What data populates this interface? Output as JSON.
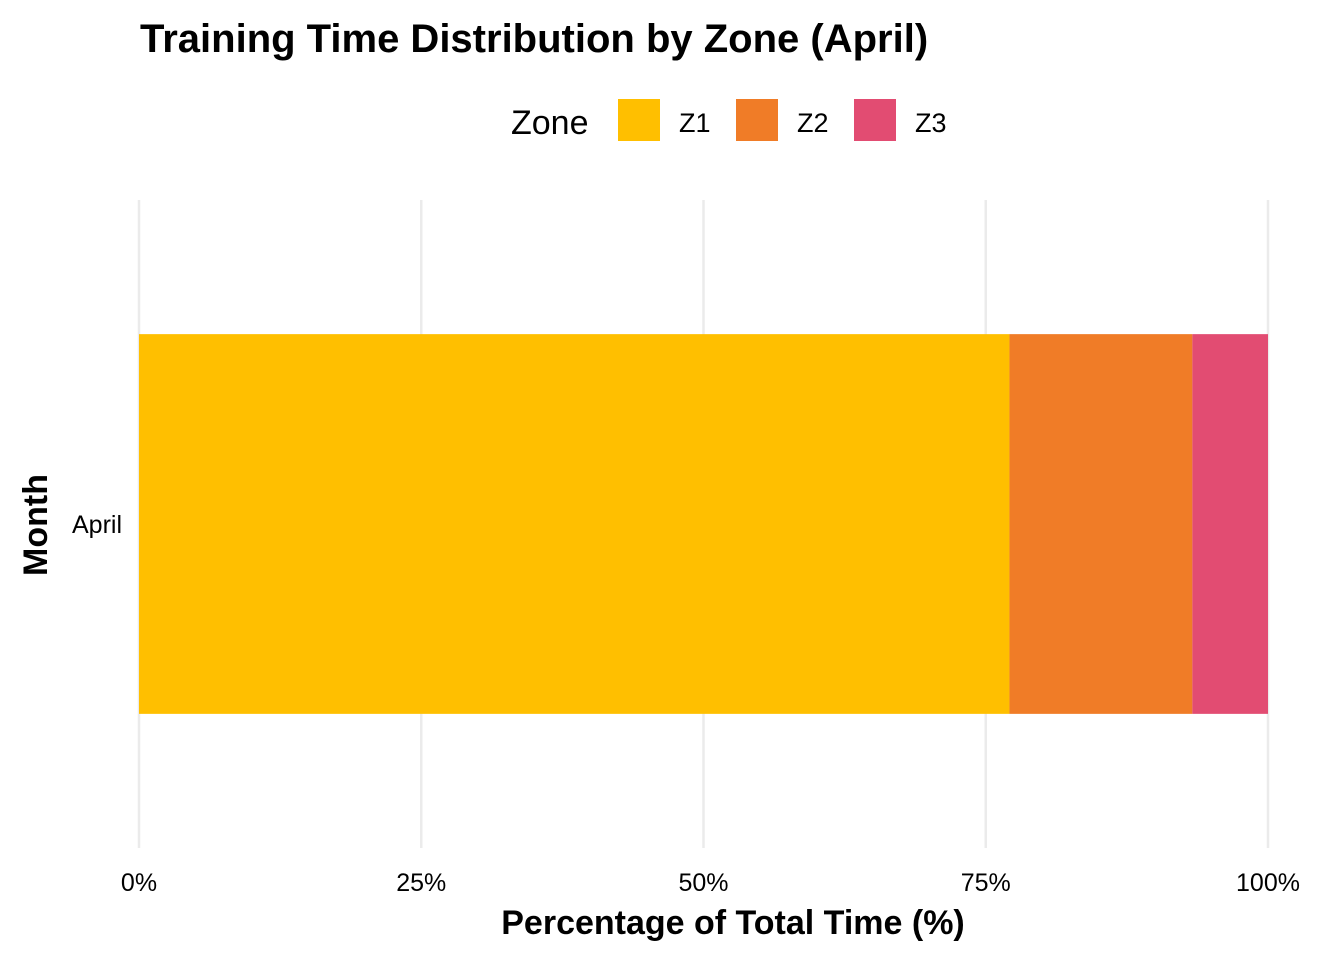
{
  "chart_data": {
    "type": "bar",
    "orientation": "horizontal",
    "stacked": true,
    "title": "Training Time Distribution by Zone (April)",
    "xlabel": "Percentage of Total Time (%)",
    "ylabel": "Month",
    "categories": [
      "April"
    ],
    "series": [
      {
        "name": "Z1",
        "values": [
          77.1
        ],
        "color": "#FFBF00"
      },
      {
        "name": "Z2",
        "values": [
          16.2
        ],
        "color": "#F07C27"
      },
      {
        "name": "Z3",
        "values": [
          6.7
        ],
        "color": "#E24C72"
      }
    ],
    "xlim": [
      0,
      100
    ],
    "x_ticks": [
      0,
      25,
      50,
      75,
      100
    ],
    "x_tick_labels": [
      "0%",
      "25%",
      "50%",
      "75%",
      "100%"
    ],
    "legend_title": "Zone",
    "legend_position": "top",
    "grid": "vertical major only"
  }
}
